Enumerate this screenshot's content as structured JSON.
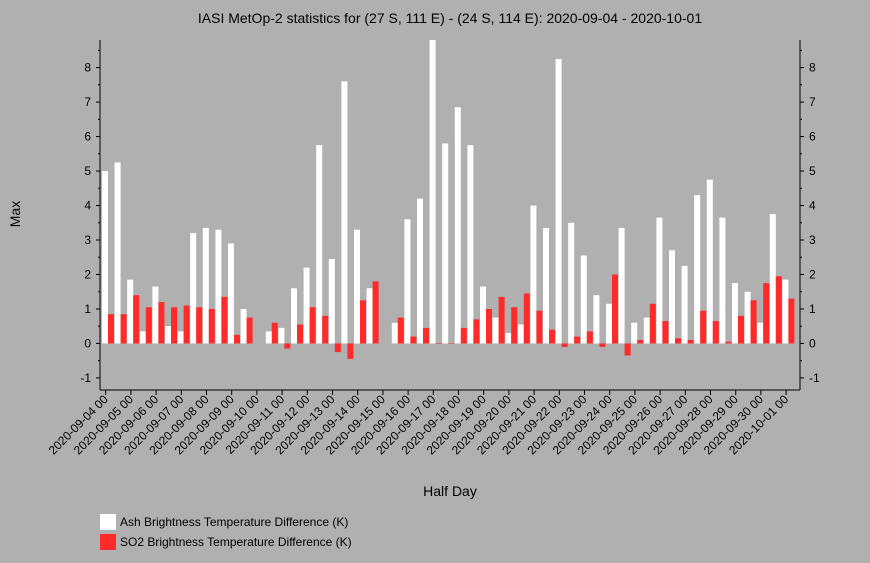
{
  "chart_data": {
    "type": "bar",
    "title": "IASI MetOp-2 statistics for (27 S, 111 E) - (24 S, 114 E): 2020-09-04 - 2020-10-01",
    "xlabel": "Half Day",
    "ylabel": "Max",
    "ylim": [
      -1.35,
      8.8
    ],
    "yticks": [
      -1,
      0,
      1,
      2,
      3,
      4,
      5,
      6,
      7,
      8
    ],
    "ytick_labels": [
      "-1",
      "0",
      "1",
      "2",
      "3",
      "4",
      "5",
      "6",
      "7",
      "8"
    ],
    "grid": false,
    "legend_position": "bottom-left",
    "colors": {
      "background": "#b0b0b0",
      "ash": "#ffffff",
      "so2": "#ff2a2a"
    },
    "categories": [
      "2020-09-04 00",
      "2020-09-04 12",
      "2020-09-05 00",
      "2020-09-05 12",
      "2020-09-06 00",
      "2020-09-06 12",
      "2020-09-07 00",
      "2020-09-07 12",
      "2020-09-08 00",
      "2020-09-08 12",
      "2020-09-09 00",
      "2020-09-09 12",
      "2020-09-10 00",
      "2020-09-10 12",
      "2020-09-11 00",
      "2020-09-11 12",
      "2020-09-12 00",
      "2020-09-12 12",
      "2020-09-13 00",
      "2020-09-13 12",
      "2020-09-14 00",
      "2020-09-14 12",
      "2020-09-15 00",
      "2020-09-15 12",
      "2020-09-16 00",
      "2020-09-16 12",
      "2020-09-17 00",
      "2020-09-17 12",
      "2020-09-18 00",
      "2020-09-18 12",
      "2020-09-19 00",
      "2020-09-19 12",
      "2020-09-20 00",
      "2020-09-20 12",
      "2020-09-21 00",
      "2020-09-21 12",
      "2020-09-22 00",
      "2020-09-22 12",
      "2020-09-23 00",
      "2020-09-23 12",
      "2020-09-24 00",
      "2020-09-24 12",
      "2020-09-25 00",
      "2020-09-25 12",
      "2020-09-26 00",
      "2020-09-26 12",
      "2020-09-27 00",
      "2020-09-27 12",
      "2020-09-28 00",
      "2020-09-28 12",
      "2020-09-29 00",
      "2020-09-29 12",
      "2020-09-30 00",
      "2020-09-30 12",
      "2020-10-01 00"
    ],
    "x_tick_labels": [
      "2020-09-04 00",
      "2020-09-05 00",
      "2020-09-06 00",
      "2020-09-07 00",
      "2020-09-08 00",
      "2020-09-09 00",
      "2020-09-10 00",
      "2020-09-11 00",
      "2020-09-12 00",
      "2020-09-13 00",
      "2020-09-14 00",
      "2020-09-15 00",
      "2020-09-16 00",
      "2020-09-17 00",
      "2020-09-18 00",
      "2020-09-19 00",
      "2020-09-20 00",
      "2020-09-21 00",
      "2020-09-22 00",
      "2020-09-23 00",
      "2020-09-24 00",
      "2020-09-25 00",
      "2020-09-26 00",
      "2020-09-27 00",
      "2020-09-28 00",
      "2020-09-29 00",
      "2020-09-30 00",
      "2020-10-01 00"
    ],
    "series": [
      {
        "name": "Ash Brightness Temperature Difference (K)",
        "color": "#ffffff",
        "values": [
          5.0,
          5.25,
          1.85,
          0.35,
          1.65,
          0.5,
          0.35,
          3.2,
          3.35,
          3.3,
          2.9,
          1.0,
          null,
          0.35,
          0.45,
          1.6,
          2.2,
          5.75,
          2.45,
          7.6,
          3.3,
          1.6,
          null,
          0.6,
          3.6,
          4.2,
          8.8,
          5.8,
          6.85,
          5.75,
          1.65,
          0.75,
          0.3,
          0.55,
          4.0,
          3.35,
          8.25,
          3.5,
          2.55,
          1.4,
          1.15,
          3.35,
          0.6,
          0.75,
          3.65,
          2.7,
          2.25,
          4.3,
          4.75,
          3.65,
          1.75,
          1.5,
          0.6,
          3.75,
          1.85
        ]
      },
      {
        "name": "SO2 Brightness Temperature Difference (K)",
        "color": "#ff2a2a",
        "values": [
          0.85,
          0.85,
          1.4,
          1.05,
          1.2,
          1.05,
          1.1,
          1.05,
          1.0,
          1.35,
          0.25,
          0.75,
          null,
          0.6,
          -0.15,
          0.55,
          1.05,
          0.8,
          -0.25,
          -0.45,
          1.25,
          1.8,
          null,
          0.75,
          0.2,
          0.45,
          0.0,
          0.0,
          0.45,
          0.7,
          1.0,
          1.35,
          1.05,
          1.45,
          0.95,
          0.4,
          -0.1,
          0.2,
          0.35,
          -0.1,
          2.0,
          -0.35,
          0.1,
          1.15,
          0.65,
          0.15,
          0.1,
          0.95,
          0.65,
          0.05,
          0.8,
          1.25,
          1.75,
          1.95,
          1.3
        ]
      }
    ]
  }
}
